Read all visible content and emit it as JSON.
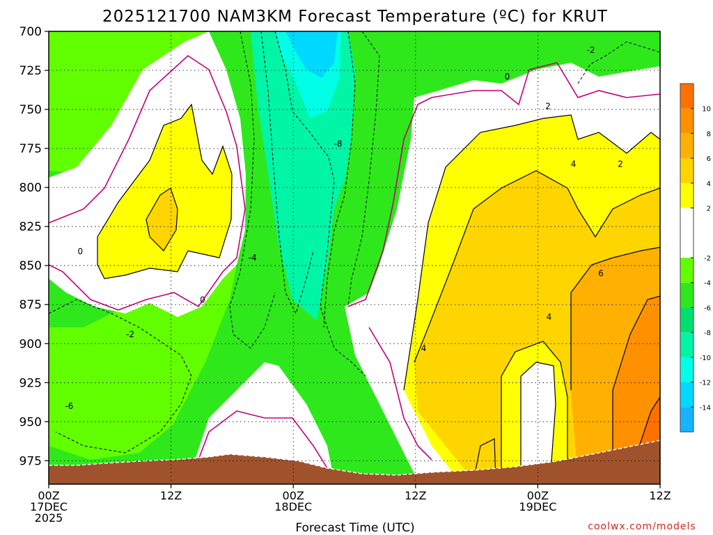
{
  "chart_data": {
    "type": "heatmap",
    "title": "2025121700 NAM3KM Forecast Temperature (ºC) for KRUT",
    "xlabel": "Forecast Time (UTC)",
    "ylabel": "",
    "credit": "coolwx.com/models",
    "x_range_hours": [
      0,
      60
    ],
    "y_range_hpa": [
      700,
      990
    ],
    "y_ticks": [
      700,
      725,
      750,
      775,
      800,
      825,
      850,
      875,
      900,
      925,
      950,
      975
    ],
    "x_ticks": [
      {
        "hour": 0,
        "lines": [
          "00Z",
          "17DEC",
          "2025"
        ]
      },
      {
        "hour": 12,
        "lines": [
          "12Z"
        ]
      },
      {
        "hour": 24,
        "lines": [
          "00Z",
          "18DEC"
        ]
      },
      {
        "hour": 36,
        "lines": [
          "12Z"
        ]
      },
      {
        "hour": 48,
        "lines": [
          "00Z",
          "19DEC"
        ]
      },
      {
        "hour": 60,
        "lines": [
          "12Z"
        ]
      }
    ],
    "colorbar": {
      "levels": [
        -16,
        -14,
        -12,
        -10,
        -8,
        -6,
        -4,
        -2,
        2,
        4,
        6,
        8,
        10,
        12
      ],
      "labels": [
        "-14",
        "-12",
        "-10",
        "-8",
        "-6",
        "-4",
        "-2",
        "2",
        "4",
        "6",
        "8",
        "10"
      ],
      "colors": [
        "#16b4ff",
        "#00d9ff",
        "#00ffe6",
        "#00f5a6",
        "#00e070",
        "#2fe81c",
        "#62ff00",
        "#ffffff",
        "#ffff00",
        "#ffd500",
        "#ffb000",
        "#ff9000",
        "#ff7000"
      ]
    },
    "contour_labels": [
      {
        "text": "-2",
        "hour": 53.2,
        "p": 712
      },
      {
        "text": "0",
        "hour": 45.0,
        "p": 729
      },
      {
        "text": "2",
        "hour": 49.0,
        "p": 748
      },
      {
        "text": "-8",
        "hour": 28.4,
        "p": 772
      },
      {
        "text": "4",
        "hour": 51.5,
        "p": 785
      },
      {
        "text": "2",
        "hour": 56.1,
        "p": 785
      },
      {
        "text": "0",
        "hour": 3.1,
        "p": 841
      },
      {
        "text": "-4",
        "hour": 20.0,
        "p": 845
      },
      {
        "text": "6",
        "hour": 54.2,
        "p": 855
      },
      {
        "text": "0",
        "hour": 15.1,
        "p": 872
      },
      {
        "text": "4",
        "hour": 49.1,
        "p": 883
      },
      {
        "text": "-2",
        "hour": 8.0,
        "p": 894
      },
      {
        "text": "4",
        "hour": 36.8,
        "p": 903
      },
      {
        "text": "-6",
        "hour": 2.0,
        "p": 940
      }
    ],
    "grid": true,
    "terrain_color": "#a0522d"
  }
}
